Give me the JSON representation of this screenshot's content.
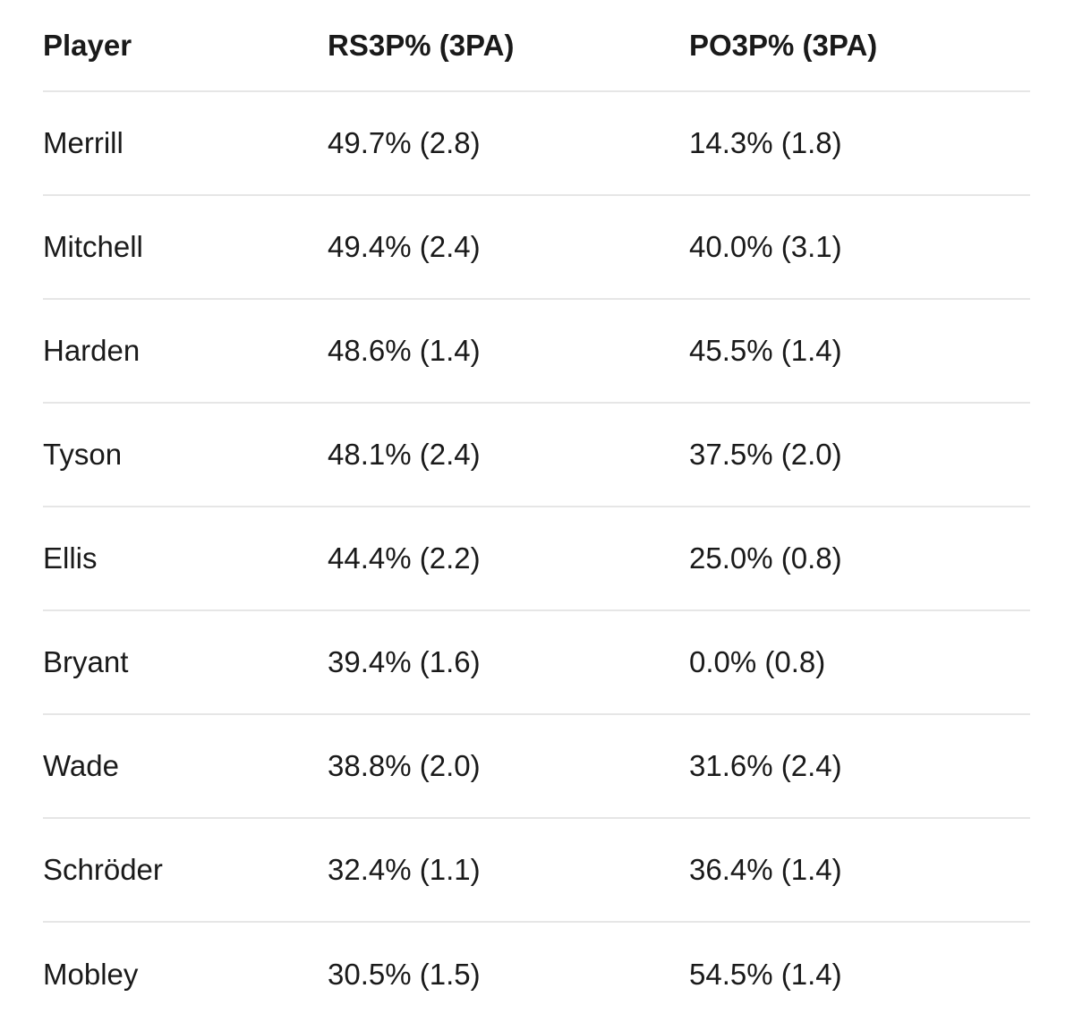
{
  "table": {
    "header": [
      "Player",
      "RS3P% (3PA)",
      "PO3P% (3PA)"
    ],
    "rows": [
      [
        "Merrill",
        "49.7% (2.8)",
        "14.3% (1.8)"
      ],
      [
        "Mitchell",
        "49.4% (2.4)",
        "40.0% (3.1)"
      ],
      [
        "Harden",
        "48.6% (1.4)",
        "45.5% (1.4)"
      ],
      [
        "Tyson",
        "48.1% (2.4)",
        "37.5% (2.0)"
      ],
      [
        "Ellis",
        "44.4% (2.2)",
        "25.0% (0.8)"
      ],
      [
        "Bryant",
        "39.4% (1.6)",
        "0.0% (0.8)"
      ],
      [
        "Wade",
        "38.8% (2.0)",
        "31.6% (2.4)"
      ],
      [
        "Schröder",
        "32.4% (1.1)",
        "36.4% (1.4)"
      ],
      [
        "Mobley",
        "30.5% (1.5)",
        "54.5% (1.4)"
      ]
    ]
  }
}
